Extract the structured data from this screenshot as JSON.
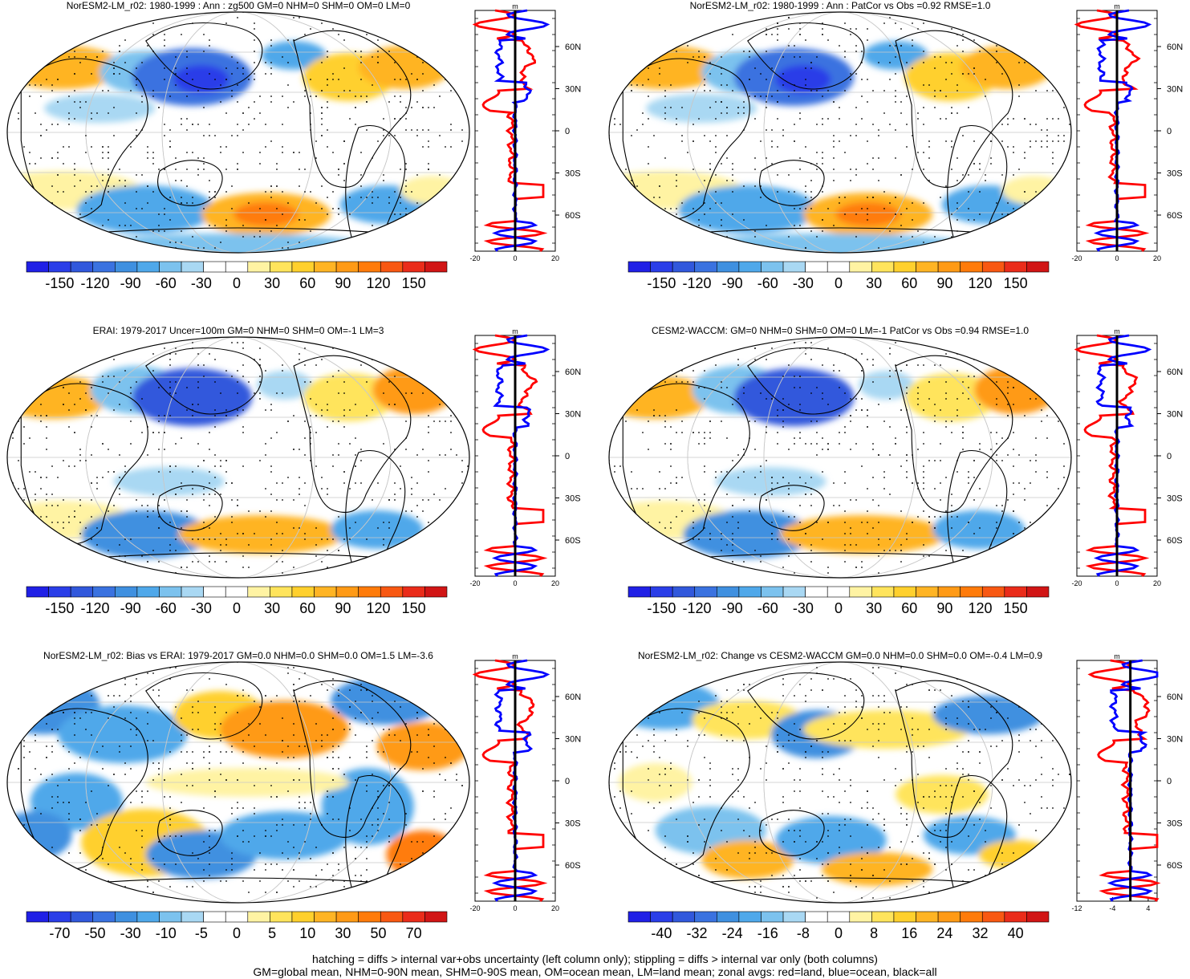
{
  "chart_data": [
    {
      "type": "heatmap",
      "title": "NorESM2-LM_r02: 1980-1999 : Ann : zg500 GM=0 NHM=0 SHM=0 OM=0 LM=0",
      "colorbar": {
        "labels": [
          "-150",
          "-120",
          "-90",
          "-60",
          "-30",
          "0",
          "30",
          "60",
          "90",
          "120",
          "150"
        ],
        "range": [
          -165,
          165
        ]
      },
      "zonal": {
        "xticks": [
          "-20",
          "0",
          "20"
        ],
        "xlim": [
          -20,
          20
        ],
        "units": "m"
      }
    },
    {
      "type": "heatmap",
      "title": "NorESM2-LM_r02: 1980-1999 : Ann : PatCor vs Obs =0.92 RMSE=1.0",
      "colorbar": {
        "labels": [
          "-150",
          "-120",
          "-90",
          "-60",
          "-30",
          "0",
          "30",
          "60",
          "90",
          "120",
          "150"
        ],
        "range": [
          -165,
          165
        ]
      },
      "zonal": {
        "xticks": [
          "-20",
          "0",
          "20"
        ],
        "xlim": [
          -20,
          20
        ],
        "units": "m"
      }
    },
    {
      "type": "heatmap",
      "title": "ERAI: 1979-2017 Uncer=100m GM=0 NHM=0 SHM=0 OM=-1 LM=3",
      "colorbar": {
        "labels": [
          "-150",
          "-120",
          "-90",
          "-60",
          "-30",
          "0",
          "30",
          "60",
          "90",
          "120",
          "150"
        ],
        "range": [
          -165,
          165
        ]
      },
      "zonal": {
        "xticks": [
          "-20",
          "0",
          "20"
        ],
        "xlim": [
          -20,
          20
        ],
        "units": "m"
      }
    },
    {
      "type": "heatmap",
      "title": "CESM2-WACCM: GM=0 NHM=0 SHM=0 OM=0 LM=-1 PatCor vs Obs =0.94 RMSE=1.0",
      "colorbar": {
        "labels": [
          "-150",
          "-120",
          "-90",
          "-60",
          "-30",
          "0",
          "30",
          "60",
          "90",
          "120",
          "150"
        ],
        "range": [
          -165,
          165
        ]
      },
      "zonal": {
        "xticks": [
          "-20",
          "0",
          "20"
        ],
        "xlim": [
          -20,
          20
        ],
        "units": "m"
      }
    },
    {
      "type": "heatmap",
      "title": "NorESM2-LM_r02: Bias vs ERAI: 1979-2017 GM=0.0 NHM=0.0 SHM=0.0 OM=1.5 LM=-3.6",
      "colorbar": {
        "labels": [
          "-70",
          "-50",
          "-30",
          "-10",
          "-5",
          "0",
          "5",
          "10",
          "30",
          "50",
          "70"
        ],
        "range": [
          -80,
          80
        ]
      },
      "zonal": {
        "xticks": [
          "-20",
          "0",
          "20"
        ],
        "xlim": [
          -20,
          20
        ],
        "units": "m"
      }
    },
    {
      "type": "heatmap",
      "title": "NorESM2-LM_r02: Change vs CESM2-WACCM GM=0.0 NHM=0.0 SHM=0.0 OM=-0.4 LM=0.9",
      "colorbar": {
        "labels": [
          "-40",
          "-32",
          "-24",
          "-16",
          "-8",
          "0",
          "8",
          "16",
          "24",
          "32",
          "40"
        ],
        "range": [
          -44,
          44
        ]
      },
      "zonal": {
        "xticks": [
          "-12",
          "-4",
          "4"
        ],
        "xlim": [
          -12,
          6
        ],
        "units": "m"
      }
    }
  ],
  "lat_labels": [
    "60N",
    "30N",
    "0",
    "30S",
    "60S"
  ],
  "colors": {
    "palette": [
      "#2020e6",
      "#2a3ee8",
      "#3158dc",
      "#3a72e0",
      "#3f90e0",
      "#4fa8ea",
      "#7cc2ee",
      "#a9d8f3",
      "#ffffff",
      "#ffffff",
      "#fff3a3",
      "#ffe45c",
      "#ffd02d",
      "#ffb424",
      "#ff9a16",
      "#ff7b0a",
      "#f85812",
      "#ea2c1a",
      "#d11515"
    ],
    "land_line": "#ff0000",
    "ocean_line": "#0000ff",
    "all_line": "#000000"
  },
  "footer": {
    "line1": "hatching = diffs > internal var+obs uncertainty (left column only); stippling = diffs > internal var only (both columns)",
    "line2": "GM=global mean, NHM=0-90N mean, SHM=0-90S mean, OM=ocean mean, LM=land mean; zonal avgs: red=land, blue=ocean, black=all"
  }
}
